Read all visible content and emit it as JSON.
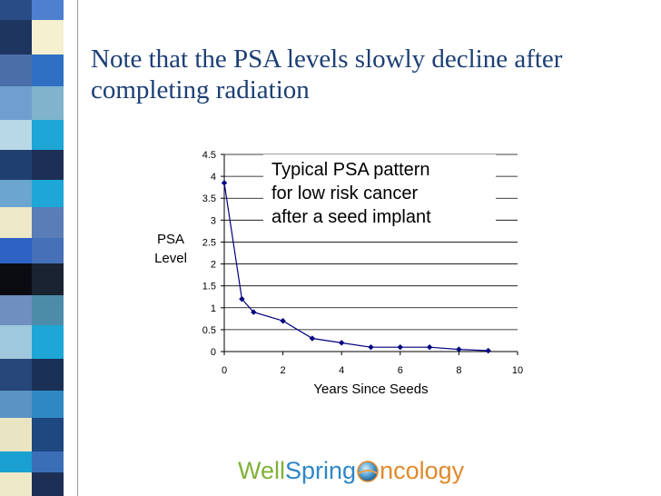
{
  "slide": {
    "title": "Note that the PSA levels slowly decline after completing radiation"
  },
  "logo": {
    "part1": "WellSpring",
    "part2": "ncology",
    "colors": {
      "well": "#7fb23a",
      "spring": "#2f86c6",
      "ncology": "#e08a2c"
    }
  },
  "chart_data": {
    "type": "line",
    "title": "Typical PSA pattern for low risk cancer after a seed implant",
    "title_lines": [
      "Typical PSA pattern",
      "for low risk cancer",
      "after a seed implant"
    ],
    "xlabel": "Years Since Seeds",
    "ylabel": "PSA Level",
    "ylabel_lines": [
      "PSA",
      "Level"
    ],
    "xlim": [
      0,
      10
    ],
    "ylim": [
      0,
      4.5
    ],
    "xticks": [
      "0",
      "2",
      "4",
      "6",
      "8",
      "10"
    ],
    "yticks": [
      "0",
      "0.5",
      "1",
      "1.5",
      "2",
      "2.5",
      "3",
      "3.5",
      "4",
      "4.5"
    ],
    "grid": true,
    "series": [
      {
        "color": "#000080",
        "x": [
          0,
          0.6,
          1,
          2,
          3,
          4,
          5,
          6,
          7,
          8,
          9
        ],
        "y": [
          3.85,
          1.2,
          0.9,
          0.7,
          0.3,
          0.2,
          0.1,
          0.1,
          0.1,
          0.05,
          0.02
        ]
      }
    ]
  }
}
